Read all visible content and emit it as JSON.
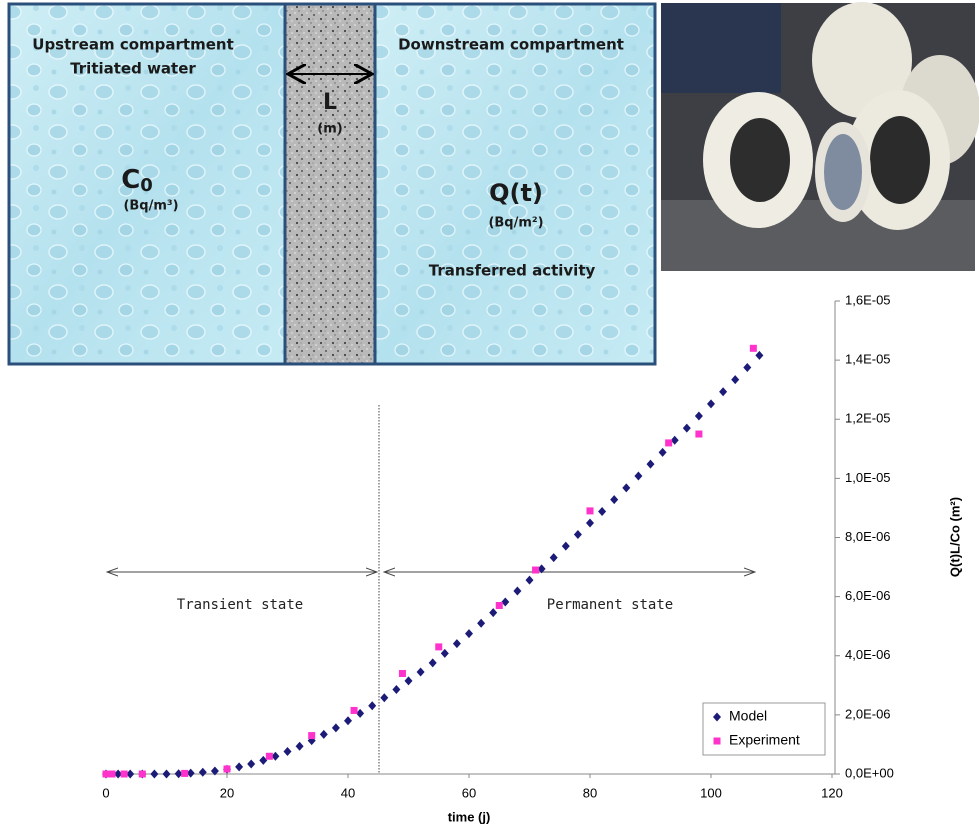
{
  "diagram": {
    "upstream_title": "Upstream compartment",
    "upstream_subtitle": "Tritiated water",
    "thickness_symbol": "L",
    "thickness_unit": "(m)",
    "concentration_symbol": "C",
    "concentration_subscript": "0",
    "concentration_unit": "(Bq/m³)",
    "downstream_title": "Downstream compartment",
    "activity_symbol": "Q(t)",
    "activity_unit": "(Bq/m²)",
    "activity_caption": "Transferred activity"
  },
  "chart_data": {
    "type": "scatter",
    "xlabel": "time (j)",
    "ylabel": "Q(t)L/Co (m²)",
    "xlim": [
      0,
      120
    ],
    "xticks": [
      0,
      20,
      40,
      60,
      80,
      100,
      120
    ],
    "ylim": [
      0,
      1.6e-05
    ],
    "yticks": [
      {
        "value": 0,
        "label": "0,0E+00"
      },
      {
        "value": 2e-06,
        "label": "2,0E-06"
      },
      {
        "value": 4e-06,
        "label": "4,0E-06"
      },
      {
        "value": 6e-06,
        "label": "6,0E-06"
      },
      {
        "value": 8e-06,
        "label": "8,0E-06"
      },
      {
        "value": 1e-05,
        "label": "1,0E-05"
      },
      {
        "value": 1.2e-05,
        "label": "1,2E-05"
      },
      {
        "value": 1.4e-05,
        "label": "1,4E-05"
      },
      {
        "value": 1.6e-05,
        "label": "1,6E-05"
      }
    ],
    "annotations": [
      "Transient state",
      "Permanent state"
    ],
    "legend_position": "lower right",
    "series": [
      {
        "name": "Model",
        "color": "#1c1c78",
        "marker": "diamond",
        "x": [
          0,
          2,
          4,
          6,
          8,
          10,
          12,
          14,
          16,
          18,
          20,
          22,
          24,
          26,
          28,
          30,
          32,
          34,
          36,
          38,
          40,
          42,
          44,
          46,
          48,
          50,
          52,
          54,
          56,
          58,
          60,
          62,
          64,
          66,
          68,
          70,
          72,
          74,
          76,
          78,
          80,
          82,
          84,
          86,
          88,
          90,
          92,
          94,
          96,
          98,
          100,
          102,
          104,
          106,
          108
        ],
        "values": [
          0,
          0,
          0,
          0,
          0,
          0,
          1e-08,
          3e-08,
          6e-08,
          1e-07,
          1.6e-07,
          2.4e-07,
          3.4e-07,
          4.6e-07,
          6e-07,
          7.6e-07,
          9.4e-07,
          1.13e-06,
          1.34e-06,
          1.56e-06,
          1.8e-06,
          2.05e-06,
          2.31e-06,
          2.58e-06,
          2.86e-06,
          3.15e-06,
          3.45e-06,
          3.76e-06,
          4.08e-06,
          4.41e-06,
          4.75e-06,
          5.1e-06,
          5.46e-06,
          5.82e-06,
          6.19e-06,
          6.56e-06,
          6.94e-06,
          7.32e-06,
          7.71e-06,
          8.1e-06,
          8.49e-06,
          8.88e-06,
          9.28e-06,
          9.68e-06,
          1.008e-05,
          1.048e-05,
          1.088e-05,
          1.129e-05,
          1.17e-05,
          1.211e-05,
          1.252e-05,
          1.293e-05,
          1.334e-05,
          1.375e-05,
          1.416e-05
        ]
      },
      {
        "name": "Experiment",
        "color": "#ff33cc",
        "marker": "square",
        "x": [
          0,
          1,
          3,
          6,
          13,
          20,
          27,
          34,
          41,
          49,
          55,
          65,
          71,
          80,
          93,
          98,
          107
        ],
        "values": [
          0,
          0,
          0,
          0,
          2e-08,
          1.7e-07,
          6e-07,
          1.3e-06,
          2.15e-06,
          3.4e-06,
          4.3e-06,
          5.7e-06,
          6.9e-06,
          8.9e-06,
          1.12e-05,
          1.15e-05,
          1.44e-05
        ]
      }
    ]
  }
}
